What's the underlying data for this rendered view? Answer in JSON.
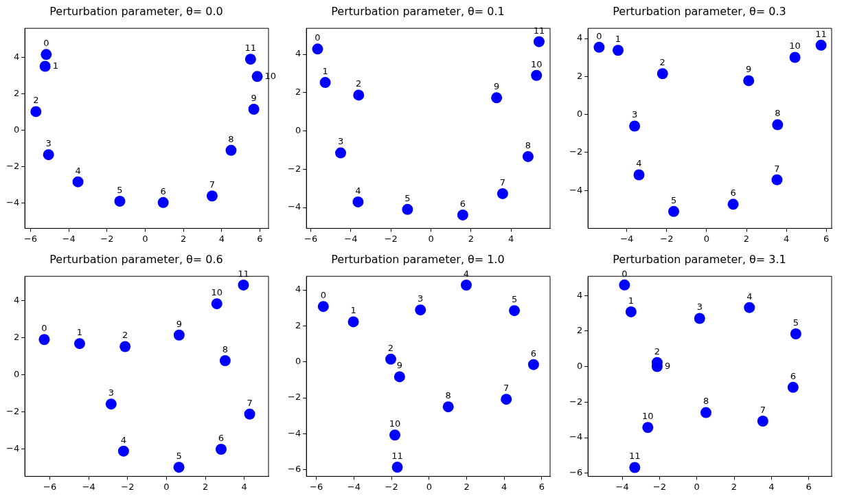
{
  "chart_data": [
    {
      "type": "scatter",
      "title": "Perturbation parameter, θ= 0.0",
      "marker": "circle",
      "grid": false,
      "xlim": [
        -6.3,
        6.45
      ],
      "ylim": [
        -5.4,
        5.6
      ],
      "xticks": [
        -6,
        -4,
        -2,
        0,
        2,
        4,
        6
      ],
      "yticks": [
        -4,
        -2,
        0,
        2,
        4
      ],
      "series": [
        {
          "color": "#0000ff",
          "x": [
            -5.18,
            -5.24,
            -5.72,
            -5.06,
            -3.52,
            -1.33,
            0.94,
            3.5,
            4.49,
            5.68,
            5.86,
            5.51
          ],
          "values": [
            4.16,
            3.51,
            1.02,
            -1.35,
            -2.84,
            -3.91,
            -3.98,
            -3.62,
            -1.11,
            1.15,
            2.95,
            3.9
          ]
        }
      ],
      "annotations": [
        {
          "text": "0",
          "x": -5.18,
          "y": 4.16
        },
        {
          "text": "1",
          "x": -5.24,
          "y": 3.51
        },
        {
          "text": "2",
          "x": -5.72,
          "y": 1.02
        },
        {
          "text": "3",
          "x": -5.06,
          "y": -1.35
        },
        {
          "text": "4",
          "x": -3.52,
          "y": -2.84
        },
        {
          "text": "5",
          "x": -1.33,
          "y": -3.91
        },
        {
          "text": "6",
          "x": 0.94,
          "y": -3.98
        },
        {
          "text": "7",
          "x": 3.5,
          "y": -3.62
        },
        {
          "text": "8",
          "x": 4.49,
          "y": -1.11
        },
        {
          "text": "9",
          "x": 5.68,
          "y": 1.15
        },
        {
          "text": "10",
          "x": 5.86,
          "y": 2.95
        },
        {
          "text": "11",
          "x": 5.51,
          "y": 3.9
        }
      ]
    },
    {
      "type": "scatter",
      "title": "Perturbation parameter, θ= 0.1",
      "marker": "circle",
      "grid": false,
      "xlim": [
        -6.22,
        5.95
      ],
      "ylim": [
        -5.09,
        5.36
      ],
      "xticks": [
        -6,
        -4,
        -2,
        0,
        2,
        4
      ],
      "yticks": [
        -4,
        -2,
        0,
        2,
        4
      ],
      "series": [
        {
          "color": "#0000ff",
          "x": [
            -5.66,
            -5.28,
            -3.61,
            -4.51,
            -3.64,
            -1.17,
            1.59,
            3.58,
            4.85,
            3.28,
            5.27,
            5.4
          ],
          "values": [
            4.28,
            2.53,
            1.87,
            -1.15,
            -3.71,
            -4.1,
            -4.39,
            -3.28,
            -1.34,
            1.73,
            2.9,
            4.66
          ]
        }
      ],
      "annotations": [
        {
          "text": "0",
          "x": -5.66,
          "y": 4.28
        },
        {
          "text": "1",
          "x": -5.28,
          "y": 2.53
        },
        {
          "text": "2",
          "x": -3.61,
          "y": 1.87
        },
        {
          "text": "3",
          "x": -4.51,
          "y": -1.15
        },
        {
          "text": "4",
          "x": -3.64,
          "y": -3.71
        },
        {
          "text": "5",
          "x": -1.17,
          "y": -4.1
        },
        {
          "text": "6",
          "x": 1.59,
          "y": -4.39
        },
        {
          "text": "7",
          "x": 3.58,
          "y": -3.28
        },
        {
          "text": "8",
          "x": 4.85,
          "y": -1.34
        },
        {
          "text": "9",
          "x": 3.28,
          "y": 1.73
        },
        {
          "text": "10",
          "x": 5.27,
          "y": 2.9
        },
        {
          "text": "11",
          "x": 5.4,
          "y": 4.66
        }
      ]
    },
    {
      "type": "scatter",
      "title": "Perturbation parameter, θ= 0.3",
      "marker": "circle",
      "grid": false,
      "xlim": [
        -5.95,
        6.27
      ],
      "ylim": [
        -6.0,
        4.54
      ],
      "xticks": [
        -4,
        -2,
        0,
        2,
        4,
        6
      ],
      "yticks": [
        -4,
        -2,
        0,
        2,
        4
      ],
      "series": [
        {
          "color": "#0000ff",
          "x": [
            -5.39,
            -4.44,
            -2.21,
            -3.61,
            -3.39,
            -1.65,
            1.33,
            3.53,
            3.56,
            2.11,
            4.43,
            5.74
          ],
          "values": [
            3.54,
            3.38,
            2.15,
            -0.61,
            -3.18,
            -5.11,
            -4.73,
            -3.44,
            -0.54,
            1.78,
            3.01,
            3.65
          ]
        }
      ],
      "annotations": [
        {
          "text": "0",
          "x": -5.39,
          "y": 3.54
        },
        {
          "text": "1",
          "x": -4.44,
          "y": 3.38
        },
        {
          "text": "2",
          "x": -2.21,
          "y": 2.15
        },
        {
          "text": "3",
          "x": -3.61,
          "y": -0.61
        },
        {
          "text": "4",
          "x": -3.39,
          "y": -3.18
        },
        {
          "text": "5",
          "x": -1.65,
          "y": -5.11
        },
        {
          "text": "6",
          "x": 1.33,
          "y": -4.73
        },
        {
          "text": "7",
          "x": 3.53,
          "y": -3.44
        },
        {
          "text": "8",
          "x": 3.56,
          "y": -0.54
        },
        {
          "text": "9",
          "x": 2.11,
          "y": 1.78
        },
        {
          "text": "10",
          "x": 4.43,
          "y": 3.01
        },
        {
          "text": "11",
          "x": 5.74,
          "y": 3.65
        }
      ]
    },
    {
      "type": "scatter",
      "title": "Perturbation parameter, θ= 0.6",
      "marker": "circle",
      "grid": false,
      "xlim": [
        -7.29,
        5.25
      ],
      "ylim": [
        -5.47,
        5.32
      ],
      "xticks": [
        -6,
        -4,
        -2,
        0,
        2,
        4
      ],
      "yticks": [
        -4,
        -2,
        0,
        2,
        4
      ],
      "series": [
        {
          "color": "#0000ff",
          "x": [
            -6.29,
            -4.47,
            -2.13,
            -2.85,
            -2.21,
            0.64,
            2.81,
            4.28,
            3.02,
            0.65,
            2.59,
            3.96
          ],
          "values": [
            1.91,
            1.69,
            1.53,
            -1.57,
            -4.11,
            -4.98,
            -4.01,
            -2.11,
            0.77,
            2.15,
            3.84,
            4.85
          ]
        }
      ],
      "annotations": [
        {
          "text": "0",
          "x": -6.29,
          "y": 1.91
        },
        {
          "text": "1",
          "x": -4.47,
          "y": 1.69
        },
        {
          "text": "2",
          "x": -2.13,
          "y": 1.53
        },
        {
          "text": "3",
          "x": -2.85,
          "y": -1.57
        },
        {
          "text": "4",
          "x": -2.21,
          "y": -4.11
        },
        {
          "text": "5",
          "x": 0.64,
          "y": -4.98
        },
        {
          "text": "6",
          "x": 2.81,
          "y": -4.01
        },
        {
          "text": "7",
          "x": 4.28,
          "y": -2.11
        },
        {
          "text": "8",
          "x": 3.02,
          "y": 0.77
        },
        {
          "text": "9",
          "x": 0.65,
          "y": 2.15
        },
        {
          "text": "10",
          "x": 2.59,
          "y": 3.84
        },
        {
          "text": "11",
          "x": 3.96,
          "y": 4.85
        }
      ]
    },
    {
      "type": "scatter",
      "title": "Perturbation parameter, θ= 1.0",
      "marker": "circle",
      "grid": false,
      "xlim": [
        -6.53,
        6.44
      ],
      "ylim": [
        -6.37,
        4.76
      ],
      "xticks": [
        -6,
        -4,
        -2,
        0,
        2,
        4,
        6
      ],
      "yticks": [
        -6,
        -4,
        -2,
        0,
        2,
        4
      ],
      "series": [
        {
          "color": "#0000ff",
          "x": [
            -5.63,
            -4.03,
            -2.04,
            -0.46,
            1.98,
            4.54,
            5.56,
            4.11,
            1.02,
            -1.57,
            -1.82,
            -1.69
          ],
          "values": [
            3.08,
            2.23,
            0.15,
            2.89,
            4.27,
            2.85,
            -0.15,
            -2.08,
            -2.5,
            -0.83,
            -4.07,
            -5.86
          ]
        }
      ],
      "annotations": [
        {
          "text": "0",
          "x": -5.63,
          "y": 3.08
        },
        {
          "text": "1",
          "x": -4.03,
          "y": 2.23
        },
        {
          "text": "2",
          "x": -2.04,
          "y": 0.15
        },
        {
          "text": "3",
          "x": -0.46,
          "y": 2.89
        },
        {
          "text": "4",
          "x": 1.98,
          "y": 4.27
        },
        {
          "text": "5",
          "x": 4.54,
          "y": 2.85
        },
        {
          "text": "6",
          "x": 5.56,
          "y": -0.15
        },
        {
          "text": "7",
          "x": 4.11,
          "y": -2.08
        },
        {
          "text": "8",
          "x": 1.02,
          "y": -2.5
        },
        {
          "text": "9",
          "x": -1.57,
          "y": -0.83
        },
        {
          "text": "10",
          "x": -1.82,
          "y": -4.07
        },
        {
          "text": "11",
          "x": -1.69,
          "y": -5.86
        }
      ]
    },
    {
      "type": "scatter",
      "title": "Perturbation parameter, θ= 3.1",
      "marker": "circle",
      "grid": false,
      "xlim": [
        -5.84,
        7.23
      ],
      "ylim": [
        -6.18,
        5.08
      ],
      "xticks": [
        -4,
        -2,
        0,
        2,
        4,
        6
      ],
      "yticks": [
        -6,
        -4,
        -2,
        0,
        2,
        4
      ],
      "series": [
        {
          "color": "#0000ff",
          "x": [
            -3.88,
            -3.53,
            -2.13,
            0.15,
            2.82,
            5.31,
            5.16,
            3.54,
            0.49,
            -2.13,
            -2.63,
            -3.33
          ],
          "values": [
            4.59,
            3.08,
            0.23,
            2.71,
            3.32,
            1.84,
            -1.17,
            -3.07,
            -2.59,
            0.0,
            -3.43,
            -5.68
          ]
        }
      ],
      "annotations": [
        {
          "text": "0",
          "x": -3.88,
          "y": 4.59
        },
        {
          "text": "1",
          "x": -3.53,
          "y": 3.08
        },
        {
          "text": "2",
          "x": -2.13,
          "y": 0.23
        },
        {
          "text": "3",
          "x": 0.15,
          "y": 2.71
        },
        {
          "text": "4",
          "x": 2.82,
          "y": 3.32
        },
        {
          "text": "5",
          "x": 5.31,
          "y": 1.84
        },
        {
          "text": "6",
          "x": 5.16,
          "y": -1.17
        },
        {
          "text": "7",
          "x": 3.54,
          "y": -3.07
        },
        {
          "text": "8",
          "x": 0.49,
          "y": -2.59
        },
        {
          "text": "9",
          "x": -2.13,
          "y": 0.0
        },
        {
          "text": "10",
          "x": -2.63,
          "y": -3.43
        },
        {
          "text": "11",
          "x": -3.33,
          "y": -5.68
        }
      ]
    }
  ]
}
